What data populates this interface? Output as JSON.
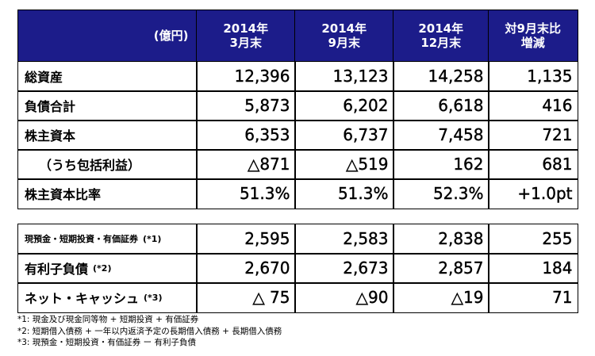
{
  "header": {
    "unit": "(億円)",
    "columns": [
      [
        "2014年",
        "3月末"
      ],
      [
        "2014年",
        "9月末"
      ],
      [
        "2014年",
        "12月末"
      ],
      [
        "対9月末比",
        "増減"
      ]
    ]
  },
  "table1": {
    "rows": [
      {
        "label": "総資産",
        "values": [
          "12,396",
          "13,123",
          "14,258",
          "1,135"
        ]
      },
      {
        "label": "負債合計",
        "values": [
          "5,873",
          "6,202",
          "6,618",
          "416"
        ]
      },
      {
        "label": "株主資本",
        "values": [
          "6,353",
          "6,737",
          "7,458",
          "721"
        ]
      },
      {
        "label": "（うち包括利益）",
        "values": [
          "△871",
          "△519",
          "162",
          "681"
        ]
      },
      {
        "label": "株主資本比率",
        "values": [
          "51.3%",
          "51.3%",
          "52.3%",
          "+1.0pt"
        ]
      }
    ]
  },
  "table2": {
    "rows": [
      {
        "label": "現預金・短期投資・有価証券",
        "note": "(*1)",
        "values": [
          "2,595",
          "2,583",
          "2,838",
          "255"
        ]
      },
      {
        "label": "有利子負債",
        "note": "(*2)",
        "values": [
          "2,670",
          "2,673",
          "2,857",
          "184"
        ]
      },
      {
        "label": "ネット・キャッシュ",
        "note": "(*3)",
        "values": [
          "△ 75",
          "△90",
          "△19",
          "71"
        ]
      }
    ]
  },
  "footnotes": [
    "*1: 現金及び現金同等物 + 短期投資 + 有価証券",
    "*2: 短期借入債務 + 一年以内返済予定の長期借入債務 + 長期借入債務",
    "*3: 現預金・短期投資・有価証券 ー 有利子負債"
  ]
}
